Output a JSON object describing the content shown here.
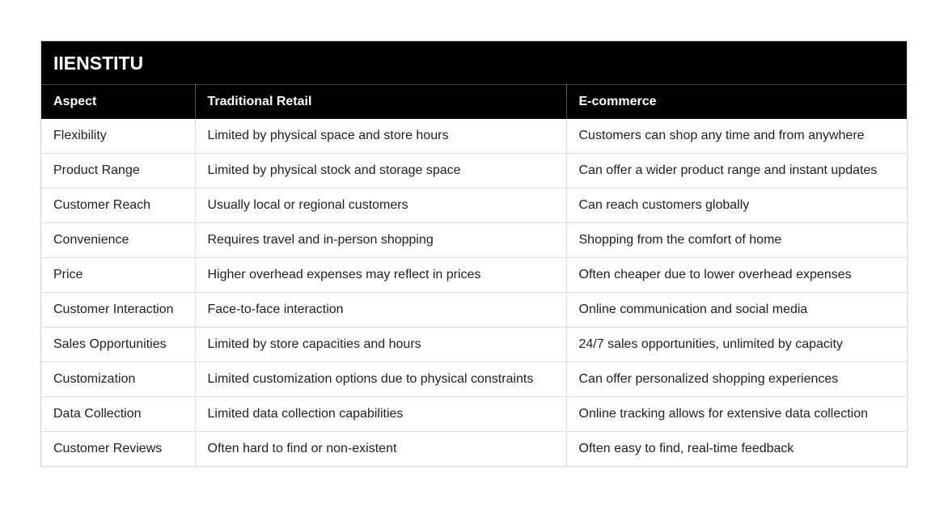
{
  "table": {
    "title": "IIENSTITU",
    "headers": [
      "Aspect",
      "Traditional Retail",
      "E-commerce"
    ],
    "rows": [
      [
        "Flexibility",
        "Limited by physical space and store hours",
        "Customers can shop any time and from anywhere"
      ],
      [
        "Product Range",
        "Limited by physical stock and storage space",
        "Can offer a wider product range and instant updates"
      ],
      [
        "Customer Reach",
        "Usually local or regional customers",
        "Can reach customers globally"
      ],
      [
        "Convenience",
        "Requires travel and in-person shopping",
        "Shopping from the comfort of home"
      ],
      [
        "Price",
        "Higher overhead expenses may reflect in prices",
        "Often cheaper due to lower overhead expenses"
      ],
      [
        "Customer Interaction",
        "Face-to-face interaction",
        "Online communication and social media"
      ],
      [
        "Sales Opportunities",
        "Limited by store capacities and hours",
        "24/7 sales opportunities, unlimited by capacity"
      ],
      [
        "Customization",
        "Limited customization options due to physical constraints",
        "Can offer personalized shopping experiences"
      ],
      [
        "Data Collection",
        "Limited data collection capabilities",
        "Online tracking allows for extensive data collection"
      ],
      [
        "Customer Reviews",
        "Often hard to find or non-existent",
        "Often easy to find, real-time feedback"
      ]
    ]
  },
  "colors": {
    "header_bg": "#000000",
    "header_text": "#ffffff",
    "cell_text": "#222222",
    "border": "#dedede"
  }
}
